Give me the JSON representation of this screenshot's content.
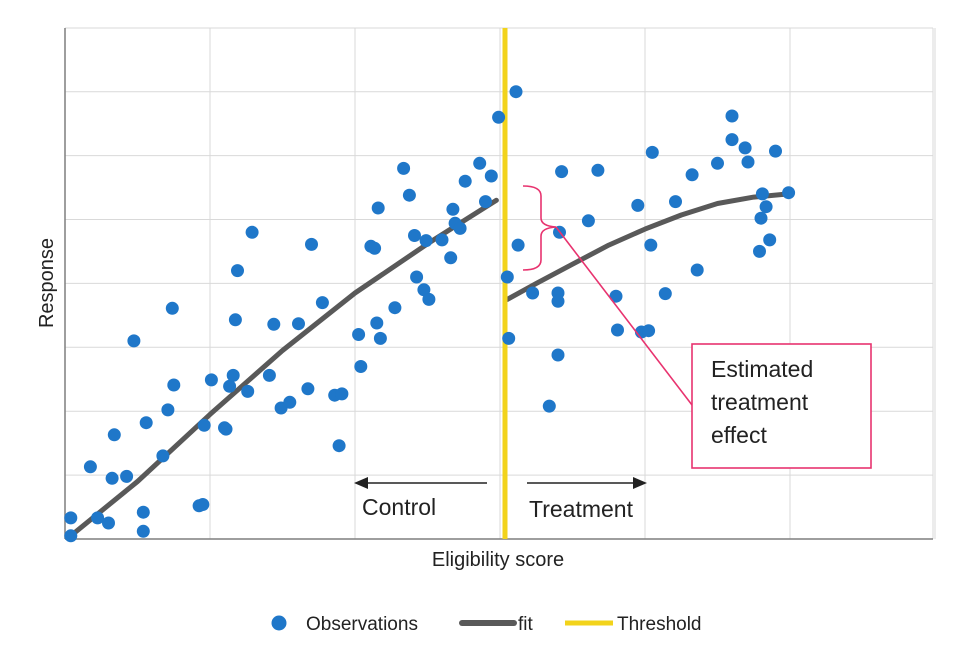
{
  "chart_data": {
    "type": "scatter",
    "title": "",
    "xlabel": "Eligibility score",
    "ylabel": "Response",
    "xlim": [
      0,
      12
    ],
    "ylim": [
      0,
      8
    ],
    "grid": true,
    "tick_labels_shown": false,
    "legend_position": "bottom-center",
    "legend": [
      {
        "label": "Observations",
        "kind": "marker",
        "color": "#1f77c9"
      },
      {
        "label": "fit",
        "kind": "line",
        "color": "#595959"
      },
      {
        "label": "Threshold",
        "kind": "line",
        "color": "#f2d31b"
      }
    ],
    "threshold_x": 6,
    "series": [
      {
        "name": "Observations",
        "color": "#1f77c9",
        "points": [
          [
            0.08,
            0.05
          ],
          [
            0.08,
            0.33
          ],
          [
            0.35,
            1.13
          ],
          [
            0.45,
            0.33
          ],
          [
            0.6,
            0.25
          ],
          [
            0.65,
            0.95
          ],
          [
            0.68,
            1.63
          ],
          [
            0.85,
            0.98
          ],
          [
            0.95,
            3.1
          ],
          [
            1.08,
            0.42
          ],
          [
            1.08,
            0.12
          ],
          [
            1.12,
            1.82
          ],
          [
            1.35,
            1.3
          ],
          [
            1.42,
            2.02
          ],
          [
            1.48,
            3.61
          ],
          [
            1.5,
            2.41
          ],
          [
            1.85,
            0.52
          ],
          [
            1.9,
            0.54
          ],
          [
            1.92,
            1.78
          ],
          [
            2.02,
            2.49
          ],
          [
            2.2,
            1.74
          ],
          [
            2.22,
            1.72
          ],
          [
            2.27,
            2.39
          ],
          [
            2.32,
            2.56
          ],
          [
            2.35,
            3.43
          ],
          [
            2.38,
            4.2
          ],
          [
            2.52,
            2.31
          ],
          [
            2.58,
            4.8
          ],
          [
            2.82,
            2.56
          ],
          [
            2.88,
            3.36
          ],
          [
            2.98,
            2.05
          ],
          [
            3.1,
            2.14
          ],
          [
            3.22,
            3.37
          ],
          [
            3.35,
            2.35
          ],
          [
            3.4,
            4.61
          ],
          [
            3.55,
            3.7
          ],
          [
            3.72,
            2.25
          ],
          [
            3.78,
            1.46
          ],
          [
            3.82,
            2.27
          ],
          [
            4.05,
            3.2
          ],
          [
            4.08,
            2.7
          ],
          [
            4.22,
            4.58
          ],
          [
            4.27,
            4.55
          ],
          [
            4.3,
            3.38
          ],
          [
            4.32,
            5.18
          ],
          [
            4.35,
            3.14
          ],
          [
            4.55,
            3.62
          ],
          [
            4.67,
            5.8
          ],
          [
            4.75,
            5.38
          ],
          [
            4.82,
            4.75
          ],
          [
            4.85,
            4.1
          ],
          [
            4.95,
            3.9
          ],
          [
            4.98,
            4.67
          ],
          [
            5.02,
            3.75
          ],
          [
            5.2,
            4.68
          ],
          [
            5.32,
            4.4
          ],
          [
            5.35,
            5.16
          ],
          [
            5.38,
            4.94
          ],
          [
            5.45,
            4.86
          ],
          [
            5.52,
            5.6
          ],
          [
            5.72,
            5.88
          ],
          [
            5.8,
            5.28
          ],
          [
            5.88,
            5.68
          ],
          [
            5.98,
            6.6
          ],
          [
            6.1,
            4.1
          ],
          [
            6.12,
            3.14
          ],
          [
            6.22,
            7.0
          ],
          [
            6.25,
            4.6
          ],
          [
            6.45,
            3.85
          ],
          [
            6.68,
            2.08
          ],
          [
            6.8,
            3.85
          ],
          [
            6.8,
            3.72
          ],
          [
            6.8,
            2.88
          ],
          [
            6.82,
            4.8
          ],
          [
            6.85,
            5.75
          ],
          [
            7.22,
            4.98
          ],
          [
            7.35,
            5.77
          ],
          [
            7.6,
            3.8
          ],
          [
            7.62,
            3.27
          ],
          [
            7.9,
            5.22
          ],
          [
            7.95,
            3.24
          ],
          [
            8.05,
            3.26
          ],
          [
            8.08,
            4.6
          ],
          [
            8.1,
            6.05
          ],
          [
            8.28,
            3.84
          ],
          [
            8.42,
            5.28
          ],
          [
            8.65,
            5.7
          ],
          [
            8.72,
            4.21
          ],
          [
            9.0,
            5.88
          ],
          [
            9.2,
            6.62
          ],
          [
            9.2,
            6.25
          ],
          [
            9.38,
            6.12
          ],
          [
            9.42,
            5.9
          ],
          [
            9.58,
            4.5
          ],
          [
            9.6,
            5.02
          ],
          [
            9.62,
            5.4
          ],
          [
            9.67,
            5.2
          ],
          [
            9.72,
            4.68
          ],
          [
            9.8,
            6.07
          ],
          [
            9.98,
            5.42
          ]
        ]
      },
      {
        "name": "fit",
        "color": "#595959",
        "segments": [
          [
            [
              0.08,
              0.05
            ],
            [
              1.0,
              0.9
            ],
            [
              2.0,
              1.95
            ],
            [
              3.0,
              2.95
            ],
            [
              4.0,
              3.85
            ],
            [
              5.0,
              4.62
            ],
            [
              5.6,
              5.05
            ],
            [
              5.95,
              5.3
            ]
          ],
          [
            [
              6.1,
              3.75
            ],
            [
              6.5,
              4.0
            ],
            [
              7.0,
              4.3
            ],
            [
              7.5,
              4.6
            ],
            [
              8.0,
              4.85
            ],
            [
              8.5,
              5.07
            ],
            [
              9.0,
              5.25
            ],
            [
              9.5,
              5.35
            ],
            [
              9.98,
              5.4
            ]
          ]
        ]
      }
    ],
    "annotations": {
      "control_label": "Control",
      "treatment_label": "Treatment",
      "effect_label_lines": [
        "Estimated",
        "treatment",
        "effect"
      ]
    }
  }
}
